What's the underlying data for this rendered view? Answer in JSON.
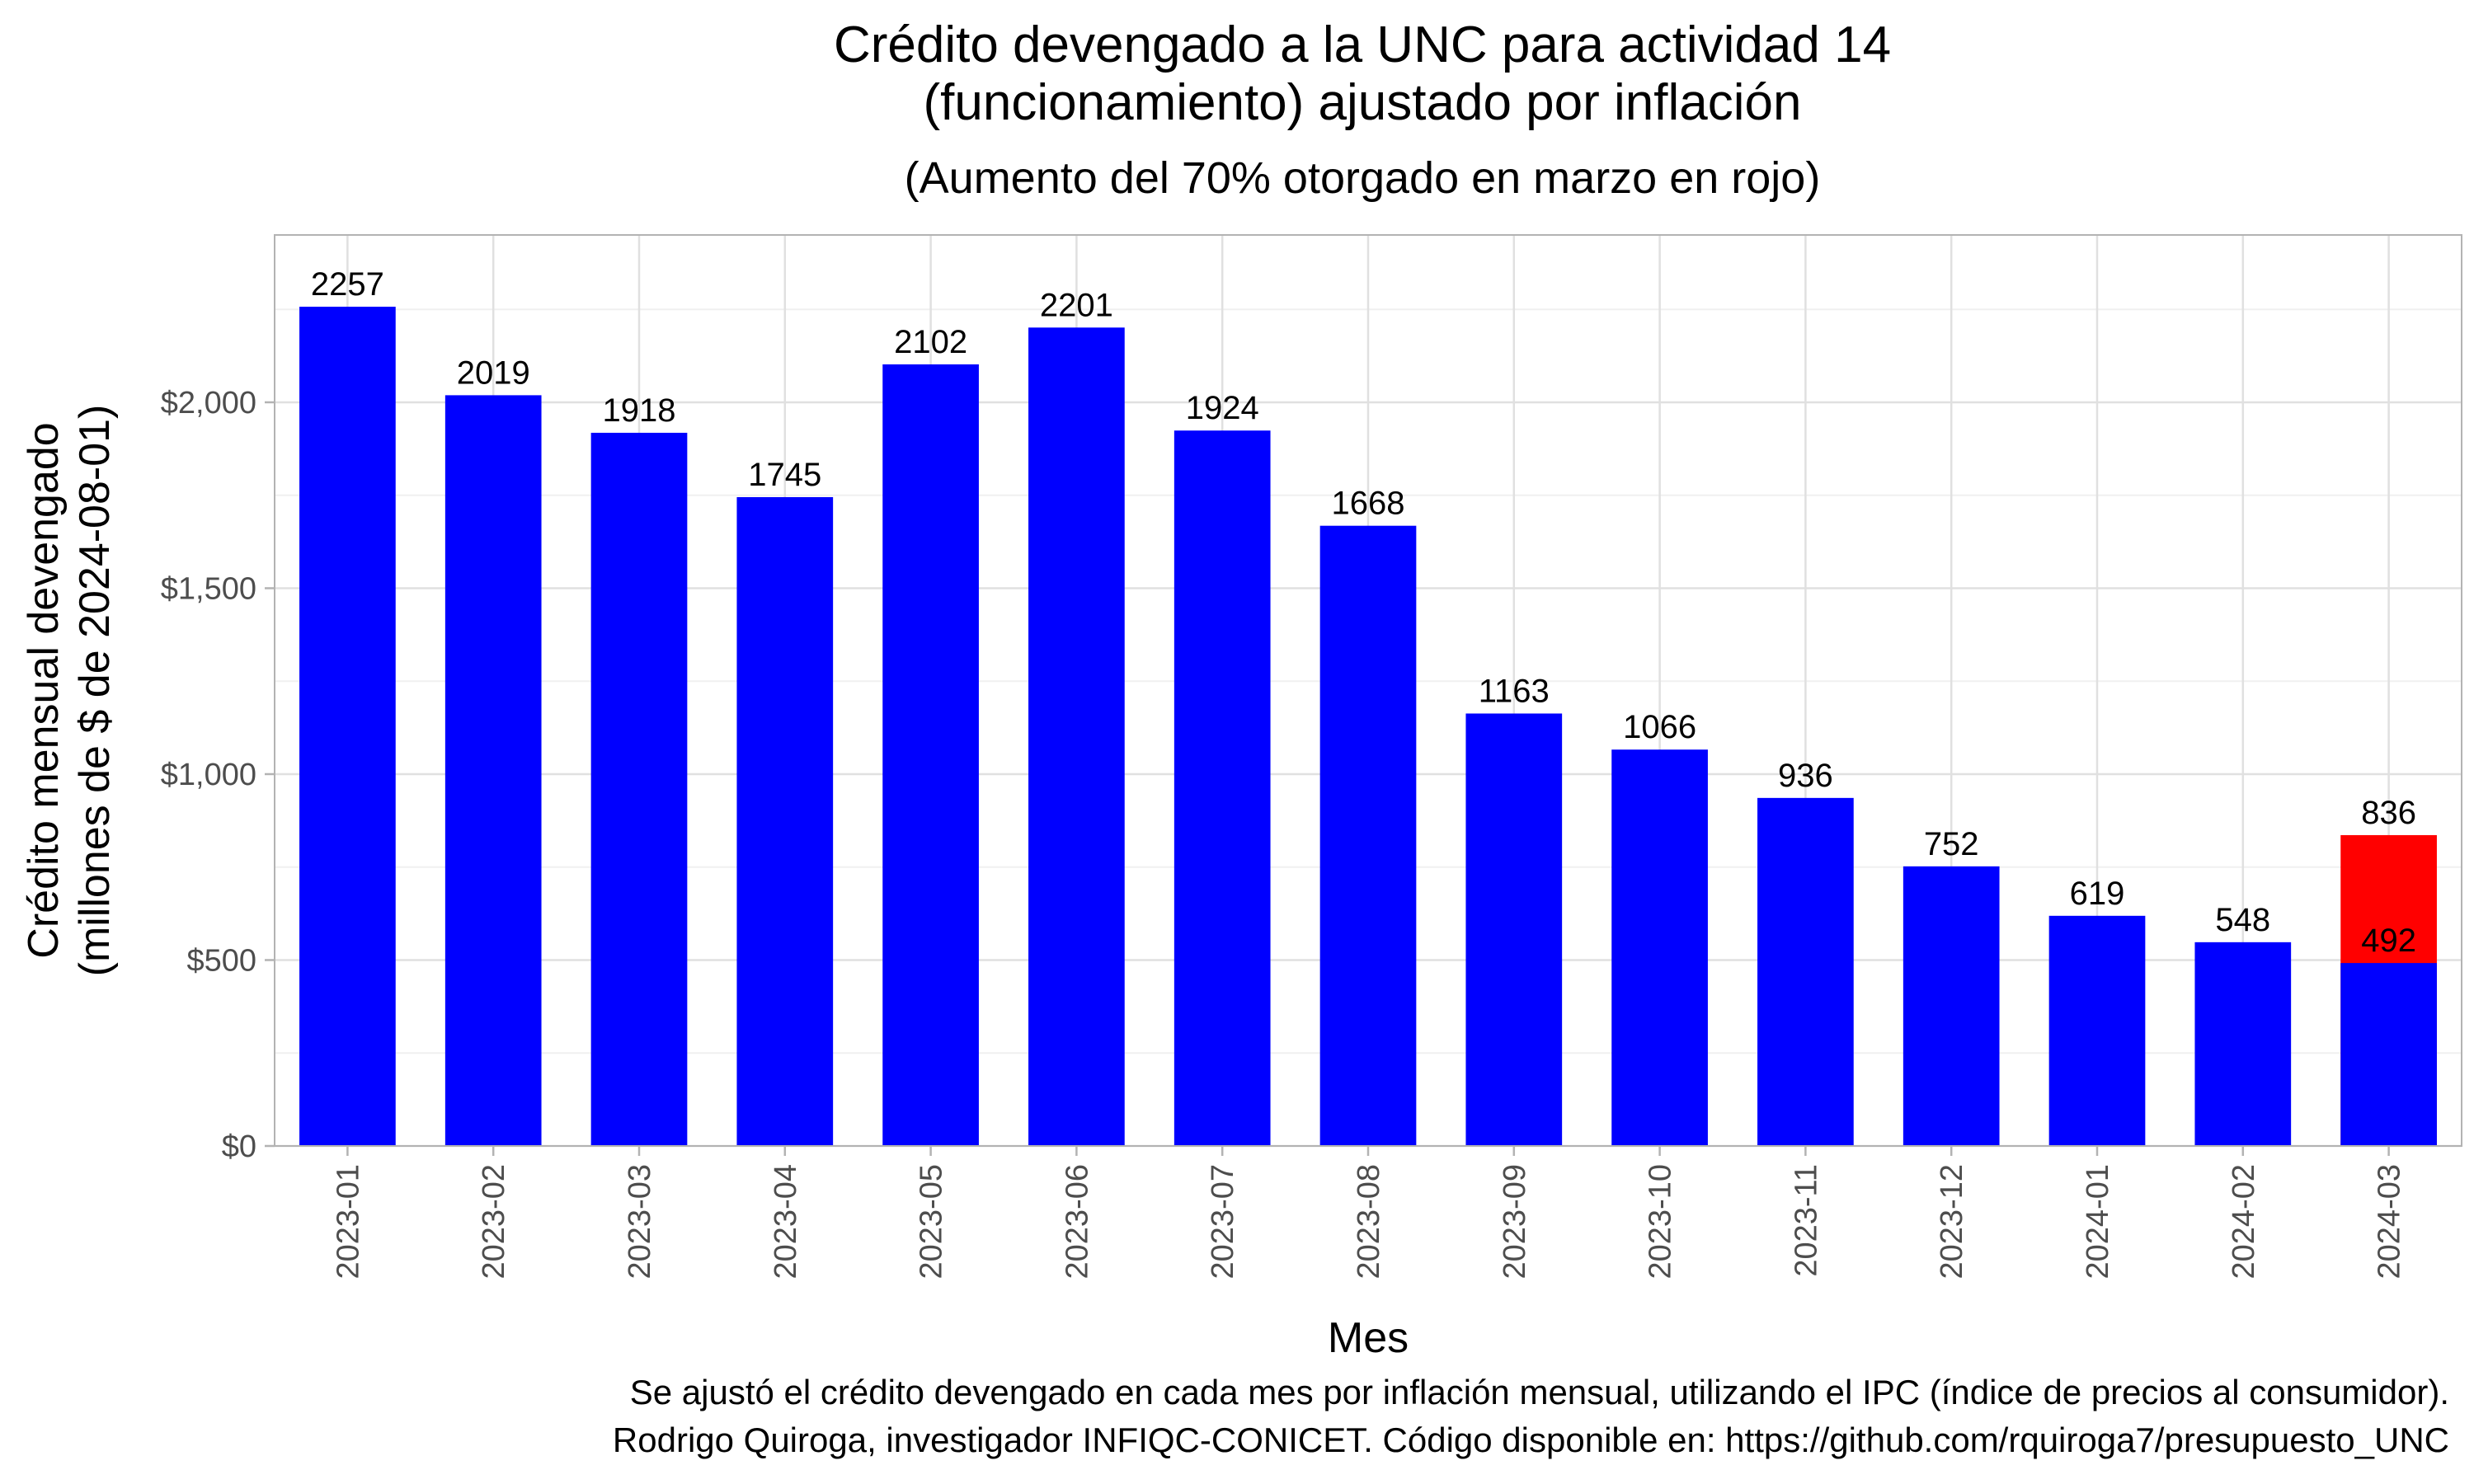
{
  "chart_data": {
    "type": "bar",
    "title": [
      "Crédito devengado a la UNC para actividad 14",
      "(funcionamiento) ajustado por inflación"
    ],
    "subtitle": "(Aumento del 70% otorgado en marzo en rojo)",
    "xlabel": "Mes",
    "ylabel": [
      "Crédito mensual devengado",
      "(millones de $ de 2024-08-01)"
    ],
    "ylim": [
      0,
      2450
    ],
    "yticks": [
      0,
      500,
      1000,
      1500,
      2000
    ],
    "ytick_labels": [
      "$0",
      "$500",
      "$1,000",
      "$1,500",
      "$2,000"
    ],
    "grid": true,
    "categories": [
      "2023-01",
      "2023-02",
      "2023-03",
      "2023-04",
      "2023-05",
      "2023-06",
      "2023-07",
      "2023-08",
      "2023-09",
      "2023-10",
      "2023-11",
      "2023-12",
      "2024-01",
      "2024-02",
      "2024-03"
    ],
    "series": [
      {
        "color": "#0000ff",
        "values": [
          2257,
          2019,
          1918,
          1745,
          2102,
          2201,
          1924,
          1668,
          1163,
          1066,
          936,
          752,
          619,
          548,
          492
        ]
      },
      {
        "color": "#ff0000",
        "values": [
          null,
          null,
          null,
          null,
          null,
          null,
          null,
          null,
          null,
          null,
          null,
          null,
          null,
          null,
          836
        ]
      }
    ],
    "caption": [
      "Se ajustó el crédito devengado en cada mes por inflación mensual, utilizando el IPC (índice de precios al consumidor).",
      "Rodrigo Quiroga, investigador INFIQC-CONICET. Código disponible en: https://github.com/rquiroga7/presupuesto_UNC"
    ]
  }
}
